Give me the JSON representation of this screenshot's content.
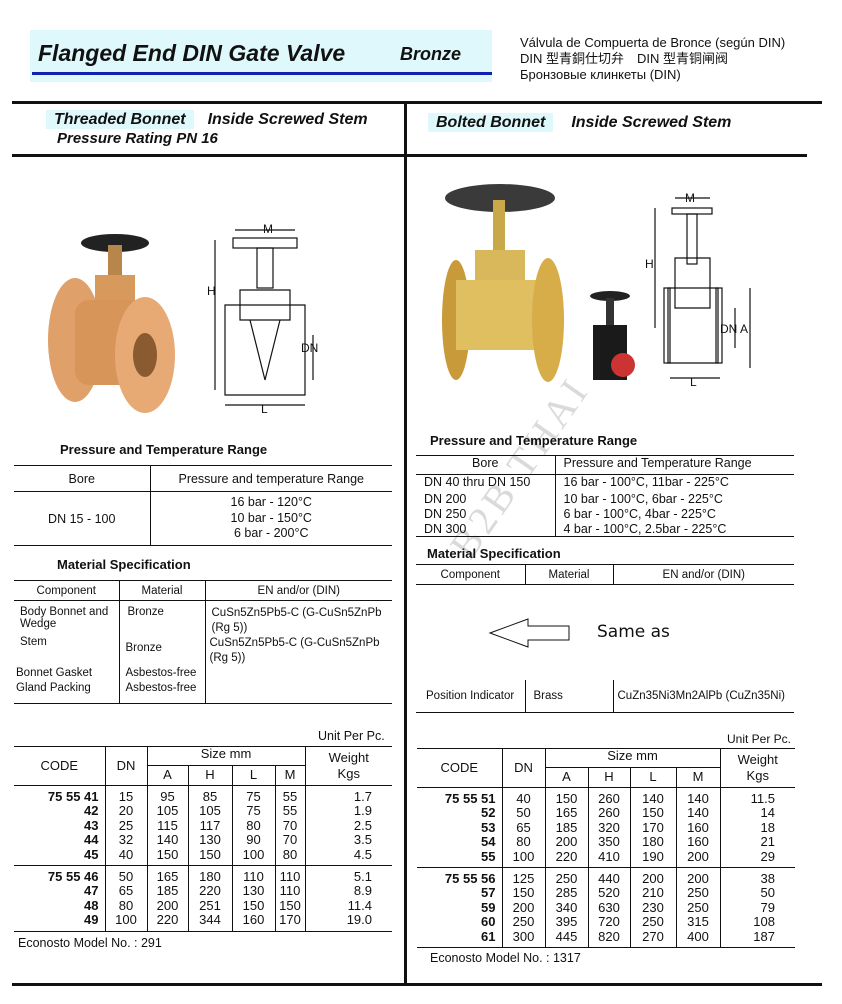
{
  "header": {
    "title": "Flanged End DIN Gate Valve",
    "material": "Bronze",
    "spanish": "Válvula de Compuerta de Bronce (según DIN)",
    "chinese": "DIN 型青銅仕切弁　DIN 型青铜闸阀",
    "russian": "Бронзовые клинкеты (DIN)",
    "accent_color": "#1020b0",
    "highlight_color": "#dff8fb"
  },
  "watermark": "B2B THAI",
  "left": {
    "bonnet": "Threaded Bonnet",
    "stem": "Inside Screwed Stem",
    "rating": "Pressure Rating PN 16",
    "diagram_labels": {
      "m": "M",
      "h": "H",
      "dn": "DN",
      "l": "L"
    },
    "pt_title": "Pressure  and Temperature Range",
    "pt_headers": [
      "Bore",
      "Pressure and temperature Range"
    ],
    "pt_bore": "DN 15 - 100",
    "pt_values": [
      "16 bar - 120°C",
      "10 bar - 150°C",
      "6 bar - 200°C"
    ],
    "mat_title": "Material Specification",
    "mat_headers": [
      "Component",
      "Material",
      "EN and/or (DIN)"
    ],
    "mat_rows": [
      {
        "c": "Body Bonnet and Wedge",
        "m": "Bronze",
        "en": "CuSn5Zn5Pb5-C (G-CuSn5ZnPb (Rg 5))"
      },
      {
        "c": "Stem",
        "m": "Bronze",
        "en": "CuSn5Zn5Pb5-C (G-CuSn5ZnPb (Rg 5))"
      },
      {
        "c": "Bonnet Gasket",
        "m": "Asbestos-free",
        "en": ""
      },
      {
        "c": "Gland Packing",
        "m": "Asbestos-free",
        "en": ""
      }
    ],
    "unit": "Unit Per Pc.",
    "table_headers": {
      "code": "CODE",
      "dn": "DN",
      "size": "Size mm",
      "a": "A",
      "h": "H",
      "l": "L",
      "m": "M",
      "weight": "Weight",
      "kgs": "Kgs"
    },
    "groups": [
      [
        [
          "75 55 41",
          "15",
          "95",
          "85",
          "75",
          "55",
          "1.7"
        ],
        [
          "42",
          "20",
          "105",
          "105",
          "75",
          "55",
          "1.9"
        ],
        [
          "43",
          "25",
          "115",
          "117",
          "80",
          "70",
          "2.5"
        ],
        [
          "44",
          "32",
          "140",
          "130",
          "90",
          "70",
          "3.5"
        ],
        [
          "45",
          "40",
          "150",
          "150",
          "100",
          "80",
          "4.5"
        ]
      ],
      [
        [
          "75 55 46",
          "50",
          "165",
          "180",
          "110",
          "110",
          "5.1"
        ],
        [
          "47",
          "65",
          "185",
          "220",
          "130",
          "110",
          "8.9"
        ],
        [
          "48",
          "80",
          "200",
          "251",
          "150",
          "150",
          "11.4"
        ],
        [
          "49",
          "100",
          "220",
          "344",
          "160",
          "170",
          "19.0"
        ]
      ]
    ],
    "model": "Econosto  Model No. : 291"
  },
  "right": {
    "bonnet": "Bolted  Bonnet",
    "stem": "Inside Screwed Stem",
    "diagram_labels": {
      "m": "M",
      "h": "H",
      "dn": "DN",
      "a": "A",
      "l": "L"
    },
    "pt_title": "Pressure  and Temperature Range",
    "pt_headers": [
      "Bore",
      "Pressure and Temperature Range"
    ],
    "pt_rows": [
      [
        "DN 40 thru DN 150",
        "16 bar - 100°C, 11bar - 225°C"
      ],
      [
        "DN 200",
        "10 bar - 100°C, 6bar - 225°C"
      ],
      [
        "DN 250",
        "6 bar - 100°C, 4bar - 225°C"
      ],
      [
        "DN 300",
        "4 bar - 100°C, 2.5bar - 225°C"
      ]
    ],
    "mat_title": "Material Specification",
    "mat_headers": [
      "Component",
      "Material",
      "EN and/or (DIN)"
    ],
    "same_as": "Same as",
    "position_row": {
      "c": "Position Indicator",
      "m": "Brass",
      "en": "CuZn35Ni3Mn2AlPb (CuZn35Ni)"
    },
    "unit": "Unit Per Pc.",
    "table_headers": {
      "code": "CODE",
      "dn": "DN",
      "size": "Size mm",
      "a": "A",
      "h": "H",
      "l": "L",
      "m": "M",
      "weight": "Weight",
      "kgs": "Kgs"
    },
    "groups": [
      [
        [
          "75 55 51",
          "40",
          "150",
          "260",
          "140",
          "140",
          "11.5"
        ],
        [
          "52",
          "50",
          "165",
          "260",
          "150",
          "140",
          "14"
        ],
        [
          "53",
          "65",
          "185",
          "320",
          "170",
          "160",
          "18"
        ],
        [
          "54",
          "80",
          "200",
          "350",
          "180",
          "160",
          "21"
        ],
        [
          "55",
          "100",
          "220",
          "410",
          "190",
          "200",
          "29"
        ]
      ],
      [
        [
          "75 55 56",
          "125",
          "250",
          "440",
          "200",
          "200",
          "38"
        ],
        [
          "57",
          "150",
          "285",
          "520",
          "210",
          "250",
          "50"
        ],
        [
          "59",
          "200",
          "340",
          "630",
          "230",
          "250",
          "79"
        ],
        [
          "60",
          "250",
          "395",
          "720",
          "250",
          "315",
          "108"
        ],
        [
          "61",
          "300",
          "445",
          "820",
          "270",
          "400",
          "187"
        ]
      ]
    ],
    "model": "Econosto Model No. : 1317"
  }
}
